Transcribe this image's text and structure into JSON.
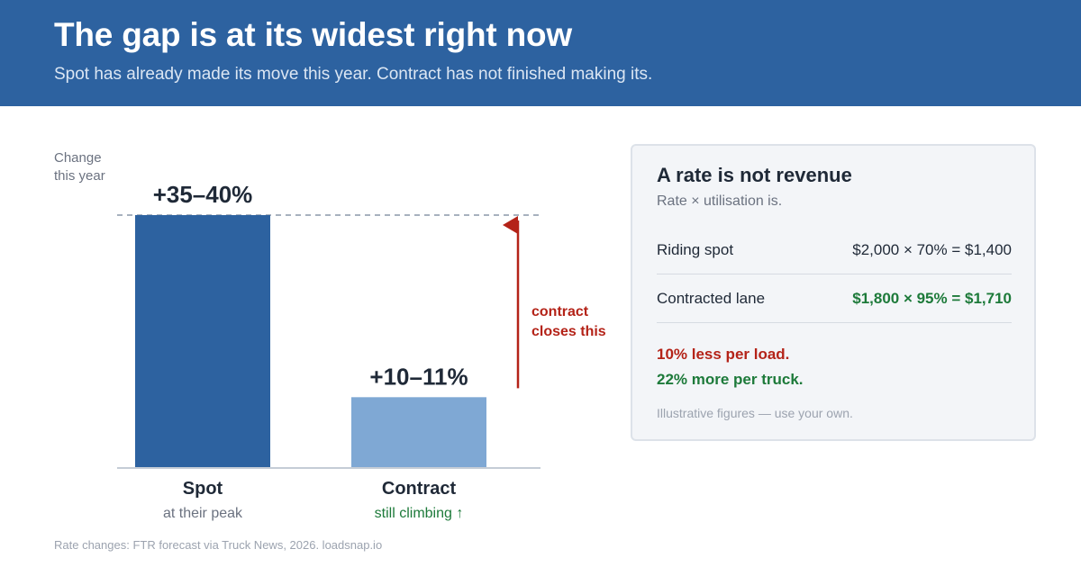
{
  "header": {
    "title": "The gap is at its widest right now",
    "subtitle": "Spot has already made its move this year. Contract has not finished making its."
  },
  "chart_data": {
    "type": "bar",
    "ylabel": "Change this year",
    "categories": [
      "Spot",
      "Contract"
    ],
    "category_notes": [
      "at their peak",
      "still climbing ↑"
    ],
    "values": [
      37.5,
      10.5
    ],
    "value_labels": [
      "+35–40%",
      "+10–11%"
    ],
    "ylim": [
      0,
      37.5
    ],
    "colors": [
      "#2d62a0",
      "#7fa8d4"
    ],
    "grid": false,
    "reference_line": {
      "value": 37.5,
      "style": "dashed"
    },
    "annotation": {
      "text_lines": [
        "contract",
        "closes this"
      ],
      "color": "#b42318"
    }
  },
  "card": {
    "title": "A rate is not revenue",
    "subtitle": "Rate × utilisation is.",
    "rows": [
      {
        "label": "Riding spot",
        "value": "$2,000 × 70% = $1,400"
      },
      {
        "label": "Contracted lane",
        "value": "$1,800 × 95% = $1,710"
      }
    ],
    "line_bad": "10% less per load.",
    "line_good": "22% more per truck.",
    "note": "Illustrative figures — use your own."
  },
  "source": "Rate changes: FTR forecast via Truck News, 2026. loadsnap.io"
}
